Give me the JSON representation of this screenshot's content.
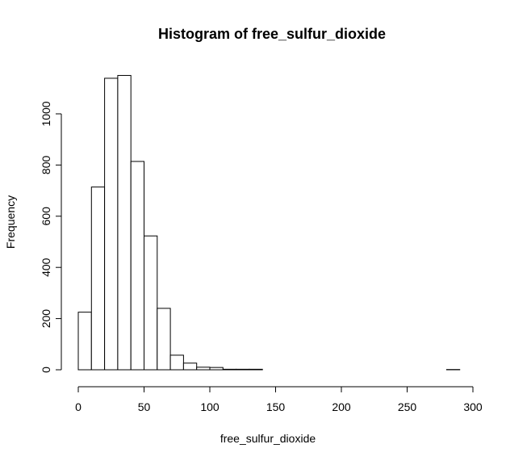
{
  "chart_data": {
    "type": "bar",
    "title": "Histogram of free_sulfur_dioxide",
    "xlabel": "free_sulfur_dioxide",
    "ylabel": "Frequency",
    "xlim": [
      0,
      300
    ],
    "ylim": [
      0,
      1150
    ],
    "bin_width": 10,
    "bins": [
      {
        "start": 0,
        "end": 10,
        "count": 225
      },
      {
        "start": 10,
        "end": 20,
        "count": 714
      },
      {
        "start": 20,
        "end": 30,
        "count": 1139
      },
      {
        "start": 30,
        "end": 40,
        "count": 1150
      },
      {
        "start": 40,
        "end": 50,
        "count": 814
      },
      {
        "start": 50,
        "end": 60,
        "count": 523
      },
      {
        "start": 60,
        "end": 70,
        "count": 240
      },
      {
        "start": 70,
        "end": 80,
        "count": 57
      },
      {
        "start": 80,
        "end": 90,
        "count": 26
      },
      {
        "start": 90,
        "end": 100,
        "count": 10
      },
      {
        "start": 100,
        "end": 110,
        "count": 9
      },
      {
        "start": 110,
        "end": 120,
        "count": 2
      },
      {
        "start": 120,
        "end": 130,
        "count": 2
      },
      {
        "start": 130,
        "end": 140,
        "count": 2
      },
      {
        "start": 140,
        "end": 150,
        "count": 0
      },
      {
        "start": 150,
        "end": 160,
        "count": 0
      },
      {
        "start": 160,
        "end": 170,
        "count": 0
      },
      {
        "start": 170,
        "end": 180,
        "count": 0
      },
      {
        "start": 180,
        "end": 190,
        "count": 0
      },
      {
        "start": 190,
        "end": 200,
        "count": 0
      },
      {
        "start": 200,
        "end": 210,
        "count": 0
      },
      {
        "start": 210,
        "end": 220,
        "count": 0
      },
      {
        "start": 220,
        "end": 230,
        "count": 0
      },
      {
        "start": 230,
        "end": 240,
        "count": 0
      },
      {
        "start": 240,
        "end": 250,
        "count": 0
      },
      {
        "start": 250,
        "end": 260,
        "count": 0
      },
      {
        "start": 260,
        "end": 270,
        "count": 0
      },
      {
        "start": 270,
        "end": 280,
        "count": 0
      },
      {
        "start": 280,
        "end": 290,
        "count": 1
      }
    ],
    "x_ticks": [
      0,
      50,
      100,
      150,
      200,
      250,
      300
    ],
    "y_ticks": [
      0,
      200,
      400,
      600,
      800,
      1000
    ],
    "grid": false,
    "bar_fill": "#ffffff",
    "bar_stroke": "#000000"
  }
}
